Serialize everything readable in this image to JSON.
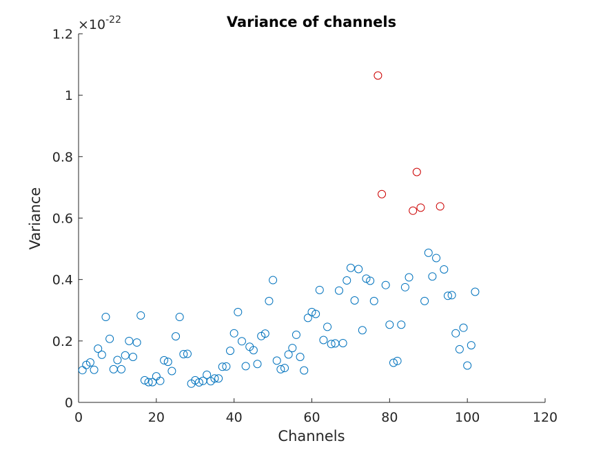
{
  "chart_data": {
    "type": "scatter",
    "title": "Variance of channels",
    "xlabel": "Channels",
    "ylabel": "Variance",
    "y_exponent_label": {
      "times": "×10",
      "exp": "-22"
    },
    "xlim": [
      0,
      120
    ],
    "ylim": [
      0,
      1.2
    ],
    "xticks": [
      "0",
      "20",
      "40",
      "60",
      "80",
      "100",
      "120"
    ],
    "yticks": [
      "0",
      "0.2",
      "0.4",
      "0.6",
      "0.8",
      "1",
      "1.2"
    ],
    "grid": false,
    "series": [
      {
        "color": "#0072bd",
        "x": [
          1,
          2,
          3,
          4,
          5,
          6,
          7,
          8,
          9,
          10,
          11,
          12,
          13,
          14,
          15,
          16,
          17,
          18,
          19,
          20,
          21,
          22,
          23,
          24,
          25,
          26,
          27,
          28,
          29,
          30,
          31,
          32,
          33,
          34,
          35,
          36,
          37,
          38,
          39,
          40,
          41,
          42,
          43,
          44,
          45,
          46,
          47,
          48,
          49,
          50,
          51,
          52,
          53,
          54,
          55,
          56,
          57,
          58,
          59,
          60,
          61,
          62,
          63,
          64,
          65,
          66,
          67,
          68,
          69,
          70,
          71,
          72,
          73,
          74,
          75,
          76,
          79,
          80,
          81,
          82,
          83,
          84,
          85,
          89,
          90,
          91,
          92,
          94,
          95,
          96,
          97,
          98,
          99,
          100,
          101,
          102
        ],
        "y": [
          0.105,
          0.122,
          0.13,
          0.106,
          0.175,
          0.155,
          0.278,
          0.207,
          0.108,
          0.138,
          0.108,
          0.153,
          0.2,
          0.148,
          0.195,
          0.283,
          0.072,
          0.066,
          0.066,
          0.085,
          0.07,
          0.137,
          0.132,
          0.102,
          0.215,
          0.278,
          0.157,
          0.158,
          0.061,
          0.072,
          0.065,
          0.07,
          0.09,
          0.069,
          0.078,
          0.078,
          0.116,
          0.117,
          0.168,
          0.225,
          0.294,
          0.199,
          0.118,
          0.181,
          0.17,
          0.125,
          0.216,
          0.224,
          0.33,
          0.398,
          0.136,
          0.108,
          0.112,
          0.156,
          0.177,
          0.22,
          0.148,
          0.104,
          0.275,
          0.294,
          0.288,
          0.366,
          0.203,
          0.246,
          0.19,
          0.192,
          0.364,
          0.193,
          0.397,
          0.438,
          0.332,
          0.434,
          0.235,
          0.403,
          0.396,
          0.33,
          0.382,
          0.253,
          0.129,
          0.135,
          0.253,
          0.375,
          0.407,
          0.33,
          0.487,
          0.41,
          0.47,
          0.433,
          0.347,
          0.349,
          0.225,
          0.173,
          0.243,
          0.12,
          0.186,
          0.36
        ]
      },
      {
        "color": "#cc0000",
        "x": [
          77,
          78,
          86,
          87,
          88,
          93
        ],
        "y": [
          1.064,
          0.678,
          0.624,
          0.75,
          0.634,
          0.638
        ]
      }
    ]
  }
}
